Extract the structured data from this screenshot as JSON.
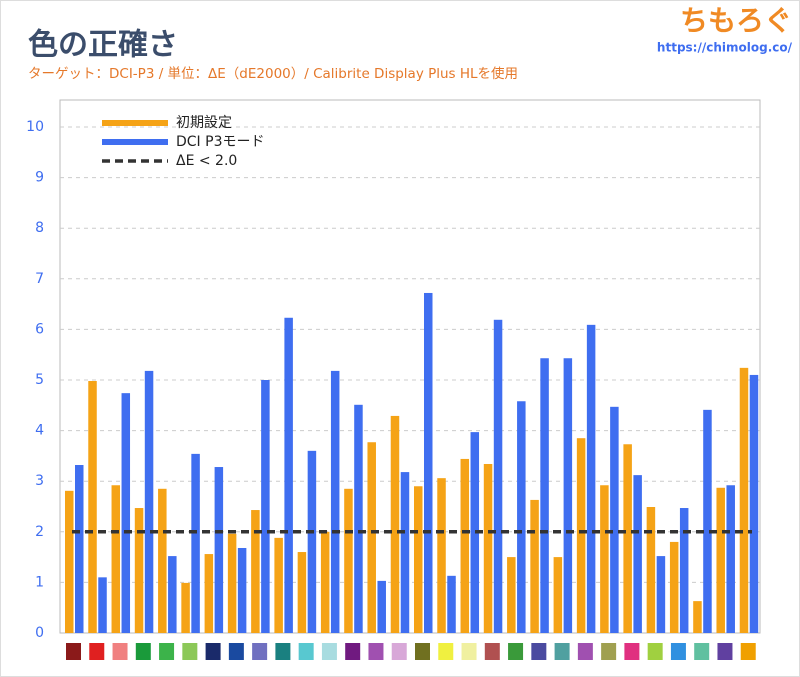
{
  "chart_data": {
    "type": "bar",
    "title": "色の正確さ",
    "subtitle": "ターゲット：DCI-P3 / 単位：ΔE（dE2000）/ Calibrite Display Plus HLを使用",
    "watermark": "ちもろぐ",
    "watermark_url": "https://chimolog.co/",
    "categories": [
      null,
      null,
      null,
      null,
      null,
      null,
      null,
      null,
      null,
      null,
      null,
      null,
      null,
      null,
      null,
      null,
      null,
      null,
      null,
      null,
      null,
      null,
      null,
      null,
      null,
      null,
      null,
      null,
      null,
      null
    ],
    "category_colors": [
      "#8b1a1a",
      "#e02020",
      "#f08080",
      "#1a9a3a",
      "#3cb34a",
      "#8cc858",
      "#1a2a6a",
      "#1a4aa0",
      "#7070c0",
      "#1a8080",
      "#58c8d0",
      "#a8dce0",
      "#701a80",
      "#a050b0",
      "#d8a8d8",
      "#707020",
      "#f0f040",
      "#f0f0a0",
      "#b05050",
      "#3a9a3a",
      "#4a4aa0",
      "#50a0a0",
      "#a050b0",
      "#a0a050",
      "#e03080",
      "#a0d040",
      "#3090e0",
      "#60c0a0",
      "#6040a0",
      "#f0a000"
    ],
    "series": [
      {
        "name": "初期設定",
        "color": "#f5a316",
        "values": [
          2.81,
          4.98,
          2.92,
          2.47,
          2.85,
          0.99,
          1.56,
          1.96,
          2.43,
          1.88,
          1.6,
          2.0,
          2.85,
          3.77,
          4.29,
          2.9,
          3.06,
          3.44,
          3.34,
          1.5,
          2.63,
          1.5,
          3.85,
          2.92,
          3.73,
          2.49,
          1.8,
          0.63,
          2.87,
          5.24
        ]
      },
      {
        "name": "DCI P3モード",
        "color": "#3f6ef0",
        "values": [
          3.32,
          1.1,
          4.74,
          5.18,
          1.52,
          3.54,
          3.28,
          1.68,
          5.0,
          6.23,
          3.6,
          5.18,
          4.51,
          1.03,
          3.18,
          6.72,
          1.13,
          3.97,
          6.19,
          4.58,
          5.43,
          5.43,
          6.09,
          4.47,
          3.12,
          1.52,
          2.47,
          4.41,
          2.92,
          5.1
        ]
      }
    ],
    "threshold": {
      "name": "ΔE < 2.0",
      "value": 2.0,
      "color": "#333333"
    },
    "ylim": [
      0,
      10
    ],
    "yticks": [
      0,
      1,
      2,
      3,
      4,
      5,
      6,
      7,
      8,
      9,
      10
    ],
    "grid": true
  }
}
